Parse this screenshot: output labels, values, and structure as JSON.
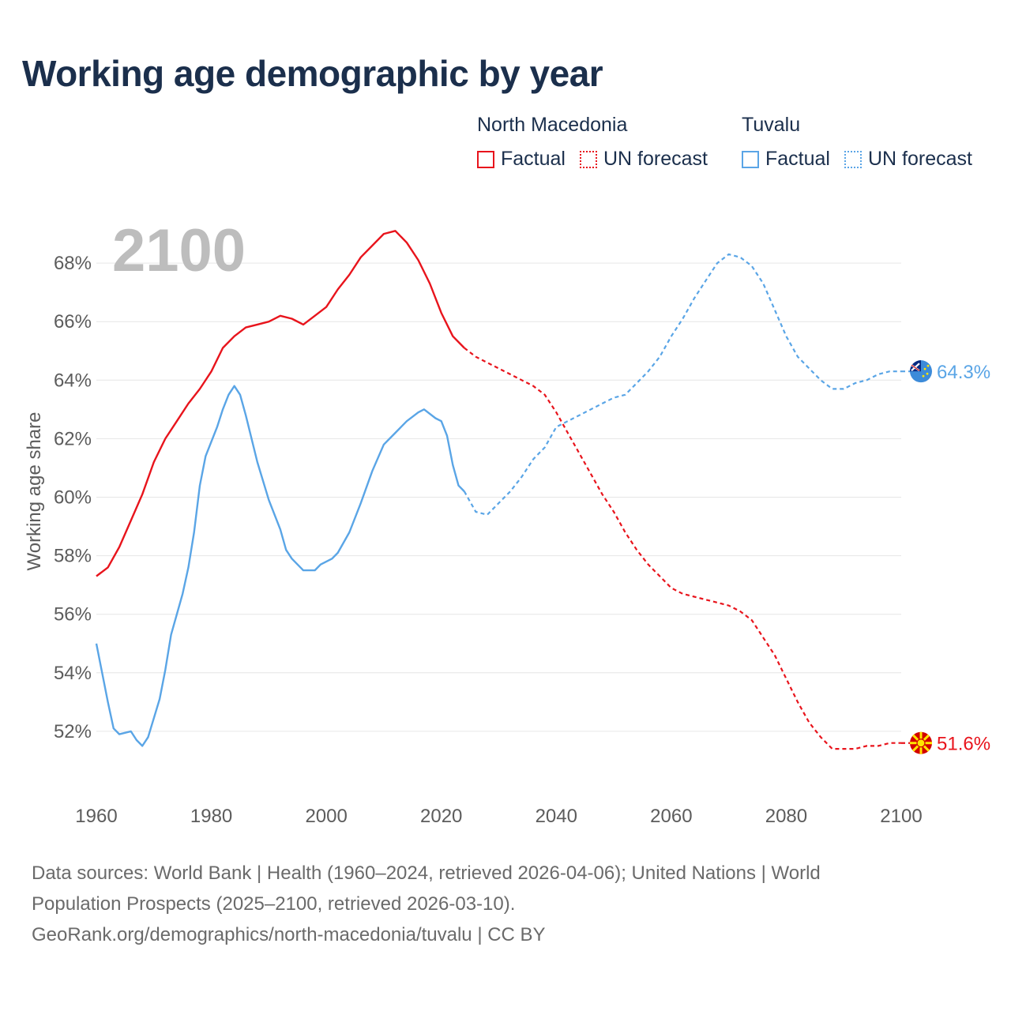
{
  "title": "Working age demographic by year",
  "legend": {
    "group_a": {
      "name": "North Macedonia",
      "factual": "Factual",
      "forecast": "UN forecast",
      "color": "#e8141c"
    },
    "group_b": {
      "name": "Tuvalu",
      "factual": "Factual",
      "forecast": "UN forecast",
      "color": "#5aa5e6"
    }
  },
  "footer": {
    "line1": "Data sources: World Bank | Health (1960–2024, retrieved 2026-04-06); United Nations | World",
    "line2": "Population Prospects (2025–2100, retrieved 2026-03-10).",
    "line3": "GeoRank.org/demographics/north-macedonia/tuvalu | CC BY"
  },
  "chart_data": {
    "type": "line",
    "title": "Working age demographic by year",
    "year_watermark": "2100",
    "ylabel": "Working age share",
    "xlabel": "",
    "xlim": [
      1960,
      2100
    ],
    "ylim": [
      50,
      70
    ],
    "x_ticks": [
      1960,
      1980,
      2000,
      2020,
      2040,
      2060,
      2080,
      2100
    ],
    "y_ticks": [
      52,
      54,
      56,
      58,
      60,
      62,
      64,
      66,
      68
    ],
    "y_tick_labels": [
      "52%",
      "54%",
      "56%",
      "58%",
      "60%",
      "62%",
      "64%",
      "66%",
      "68%"
    ],
    "grid": true,
    "factual_until": 2024,
    "series": [
      {
        "name": "North Macedonia",
        "color": "#e8141c",
        "end_label": "51.6%",
        "points": [
          [
            1960,
            57.3
          ],
          [
            1962,
            57.6
          ],
          [
            1964,
            58.3
          ],
          [
            1966,
            59.2
          ],
          [
            1968,
            60.1
          ],
          [
            1970,
            61.2
          ],
          [
            1972,
            62.0
          ],
          [
            1974,
            62.6
          ],
          [
            1976,
            63.2
          ],
          [
            1978,
            63.7
          ],
          [
            1980,
            64.3
          ],
          [
            1982,
            65.1
          ],
          [
            1984,
            65.5
          ],
          [
            1986,
            65.8
          ],
          [
            1988,
            65.9
          ],
          [
            1990,
            66.0
          ],
          [
            1992,
            66.2
          ],
          [
            1994,
            66.1
          ],
          [
            1996,
            65.9
          ],
          [
            1998,
            66.2
          ],
          [
            2000,
            66.5
          ],
          [
            2002,
            67.1
          ],
          [
            2004,
            67.6
          ],
          [
            2006,
            68.2
          ],
          [
            2008,
            68.6
          ],
          [
            2010,
            69.0
          ],
          [
            2012,
            69.1
          ],
          [
            2014,
            68.7
          ],
          [
            2016,
            68.1
          ],
          [
            2018,
            67.3
          ],
          [
            2020,
            66.3
          ],
          [
            2022,
            65.5
          ],
          [
            2024,
            65.1
          ],
          [
            2026,
            64.8
          ],
          [
            2028,
            64.6
          ],
          [
            2030,
            64.4
          ],
          [
            2032,
            64.2
          ],
          [
            2034,
            64.0
          ],
          [
            2036,
            63.8
          ],
          [
            2038,
            63.5
          ],
          [
            2040,
            62.9
          ],
          [
            2042,
            62.2
          ],
          [
            2044,
            61.5
          ],
          [
            2046,
            60.8
          ],
          [
            2048,
            60.1
          ],
          [
            2050,
            59.5
          ],
          [
            2052,
            58.8
          ],
          [
            2054,
            58.2
          ],
          [
            2056,
            57.7
          ],
          [
            2058,
            57.3
          ],
          [
            2060,
            56.9
          ],
          [
            2062,
            56.7
          ],
          [
            2064,
            56.6
          ],
          [
            2066,
            56.5
          ],
          [
            2068,
            56.4
          ],
          [
            2070,
            56.3
          ],
          [
            2072,
            56.1
          ],
          [
            2074,
            55.8
          ],
          [
            2076,
            55.2
          ],
          [
            2078,
            54.6
          ],
          [
            2080,
            53.8
          ],
          [
            2082,
            53.0
          ],
          [
            2084,
            52.3
          ],
          [
            2086,
            51.8
          ],
          [
            2088,
            51.4
          ],
          [
            2090,
            51.4
          ],
          [
            2092,
            51.4
          ],
          [
            2094,
            51.5
          ],
          [
            2096,
            51.5
          ],
          [
            2098,
            51.6
          ],
          [
            2100,
            51.6
          ]
        ]
      },
      {
        "name": "Tuvalu",
        "color": "#5aa5e6",
        "end_label": "64.3%",
        "points": [
          [
            1960,
            55.0
          ],
          [
            1962,
            53.0
          ],
          [
            1963,
            52.1
          ],
          [
            1964,
            51.9
          ],
          [
            1966,
            52.0
          ],
          [
            1967,
            51.7
          ],
          [
            1968,
            51.5
          ],
          [
            1969,
            51.8
          ],
          [
            1971,
            53.1
          ],
          [
            1972,
            54.1
          ],
          [
            1973,
            55.3
          ],
          [
            1975,
            56.7
          ],
          [
            1976,
            57.6
          ],
          [
            1977,
            58.8
          ],
          [
            1978,
            60.4
          ],
          [
            1979,
            61.4
          ],
          [
            1981,
            62.4
          ],
          [
            1982,
            63.0
          ],
          [
            1983,
            63.5
          ],
          [
            1984,
            63.8
          ],
          [
            1985,
            63.5
          ],
          [
            1986,
            62.8
          ],
          [
            1988,
            61.2
          ],
          [
            1990,
            59.9
          ],
          [
            1992,
            58.9
          ],
          [
            1993,
            58.2
          ],
          [
            1994,
            57.9
          ],
          [
            1996,
            57.5
          ],
          [
            1998,
            57.5
          ],
          [
            1999,
            57.7
          ],
          [
            2001,
            57.9
          ],
          [
            2002,
            58.1
          ],
          [
            2004,
            58.8
          ],
          [
            2006,
            59.8
          ],
          [
            2008,
            60.9
          ],
          [
            2010,
            61.8
          ],
          [
            2012,
            62.2
          ],
          [
            2014,
            62.6
          ],
          [
            2016,
            62.9
          ],
          [
            2017,
            63.0
          ],
          [
            2019,
            62.7
          ],
          [
            2020,
            62.6
          ],
          [
            2021,
            62.1
          ],
          [
            2022,
            61.1
          ],
          [
            2023,
            60.4
          ],
          [
            2024,
            60.2
          ],
          [
            2026,
            59.5
          ],
          [
            2028,
            59.4
          ],
          [
            2030,
            59.8
          ],
          [
            2032,
            60.2
          ],
          [
            2034,
            60.7
          ],
          [
            2036,
            61.3
          ],
          [
            2038,
            61.7
          ],
          [
            2040,
            62.4
          ],
          [
            2042,
            62.6
          ],
          [
            2044,
            62.8
          ],
          [
            2046,
            63.0
          ],
          [
            2048,
            63.2
          ],
          [
            2050,
            63.4
          ],
          [
            2052,
            63.5
          ],
          [
            2054,
            63.9
          ],
          [
            2056,
            64.3
          ],
          [
            2058,
            64.8
          ],
          [
            2060,
            65.5
          ],
          [
            2062,
            66.1
          ],
          [
            2064,
            66.8
          ],
          [
            2066,
            67.4
          ],
          [
            2068,
            68.0
          ],
          [
            2070,
            68.3
          ],
          [
            2072,
            68.2
          ],
          [
            2074,
            67.9
          ],
          [
            2076,
            67.3
          ],
          [
            2078,
            66.4
          ],
          [
            2080,
            65.5
          ],
          [
            2082,
            64.8
          ],
          [
            2084,
            64.4
          ],
          [
            2086,
            64.0
          ],
          [
            2088,
            63.7
          ],
          [
            2090,
            63.7
          ],
          [
            2092,
            63.9
          ],
          [
            2094,
            64.0
          ],
          [
            2096,
            64.2
          ],
          [
            2098,
            64.3
          ],
          [
            2100,
            64.3
          ]
        ]
      }
    ]
  }
}
